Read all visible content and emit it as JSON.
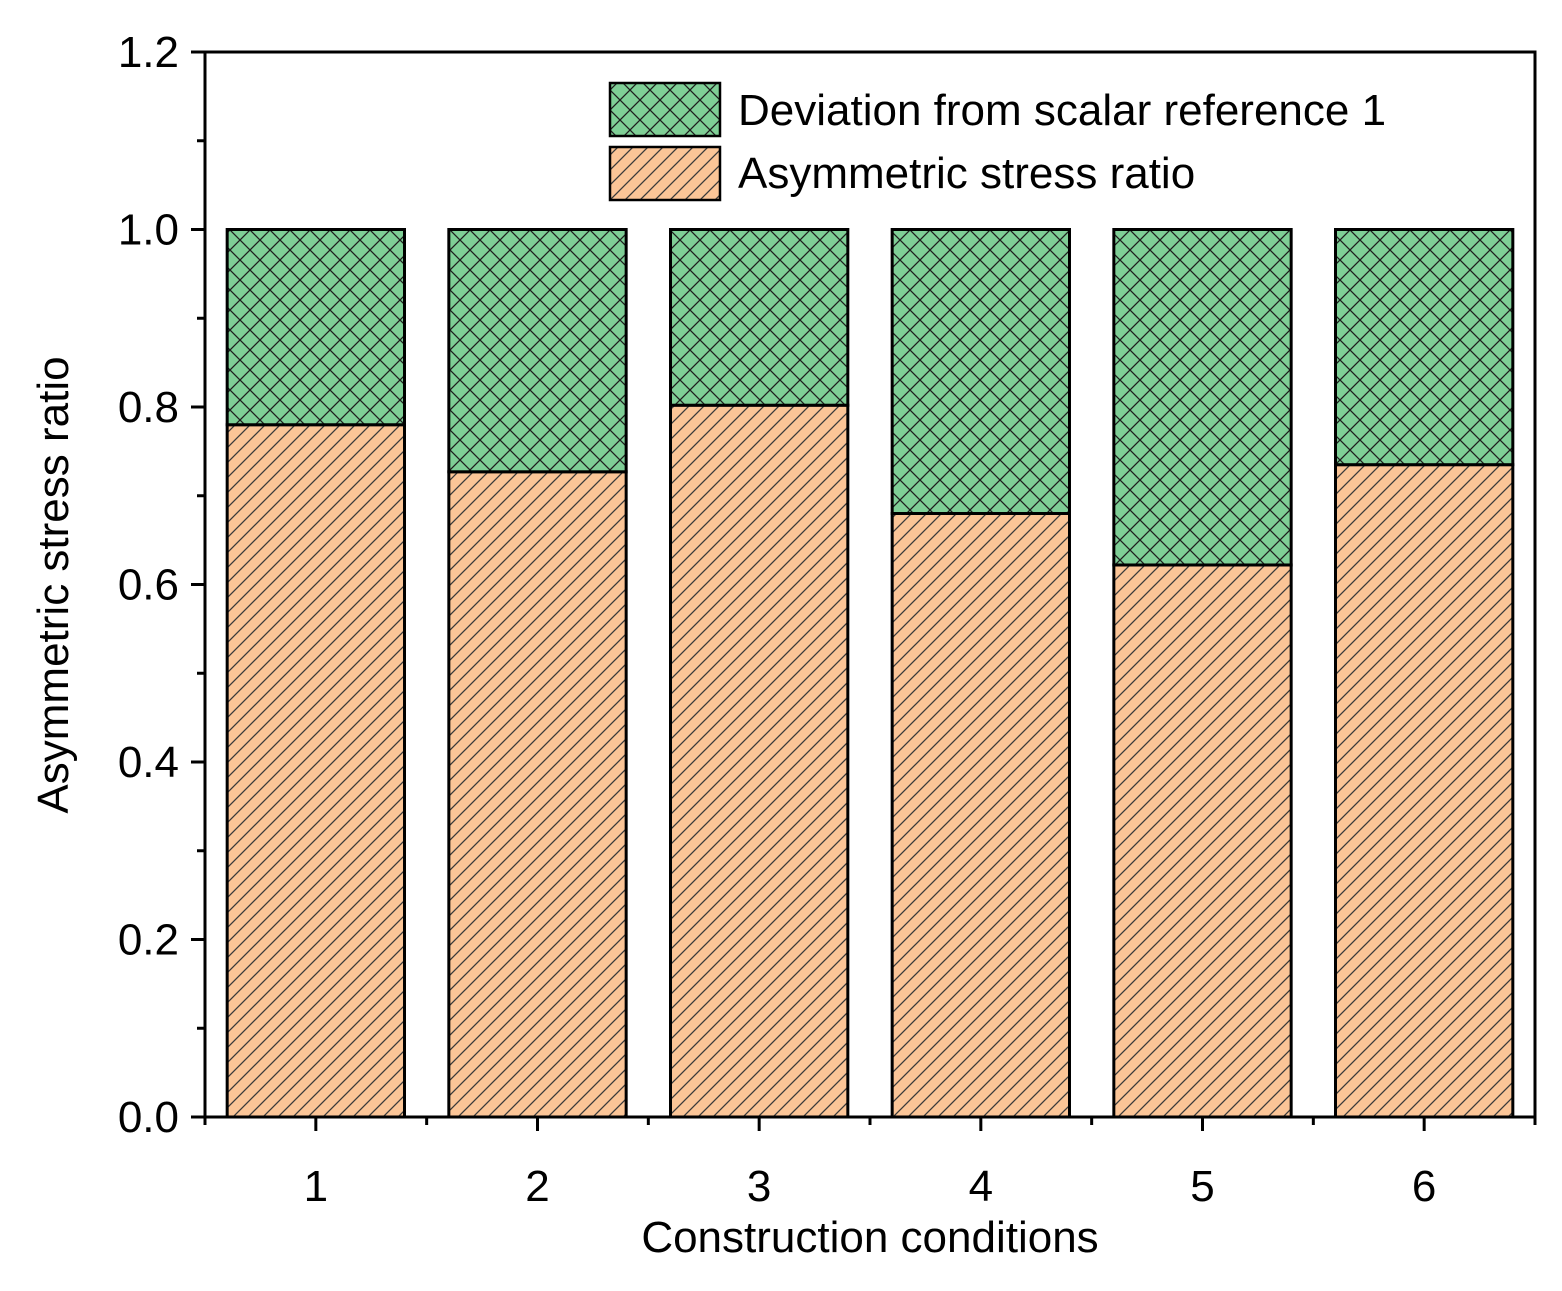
{
  "chart_data": {
    "type": "bar",
    "stacked": true,
    "title": "",
    "xlabel": "Construction conditions",
    "ylabel": "Asymmetric stress ratio",
    "categories": [
      "1",
      "2",
      "3",
      "4",
      "5",
      "6"
    ],
    "ylim": [
      0,
      1.2
    ],
    "yticks": [
      0.0,
      0.2,
      0.4,
      0.6,
      0.8,
      1.0,
      1.2
    ],
    "ytick_labels": [
      "0.0",
      "0.2",
      "0.4",
      "0.6",
      "0.8",
      "1.0",
      "1.2"
    ],
    "grid": false,
    "legend_position": "top-right",
    "series": [
      {
        "name": "Asymmetric stress ratio",
        "pattern": "diagonal-hatch",
        "color": "#fbc597",
        "values": [
          0.78,
          0.727,
          0.802,
          0.68,
          0.622,
          0.735
        ]
      },
      {
        "name": "Deviation from scalar reference 1",
        "pattern": "cross-hatch",
        "color": "#7fcf96",
        "values": [
          0.22,
          0.273,
          0.198,
          0.32,
          0.378,
          0.265
        ]
      }
    ]
  }
}
